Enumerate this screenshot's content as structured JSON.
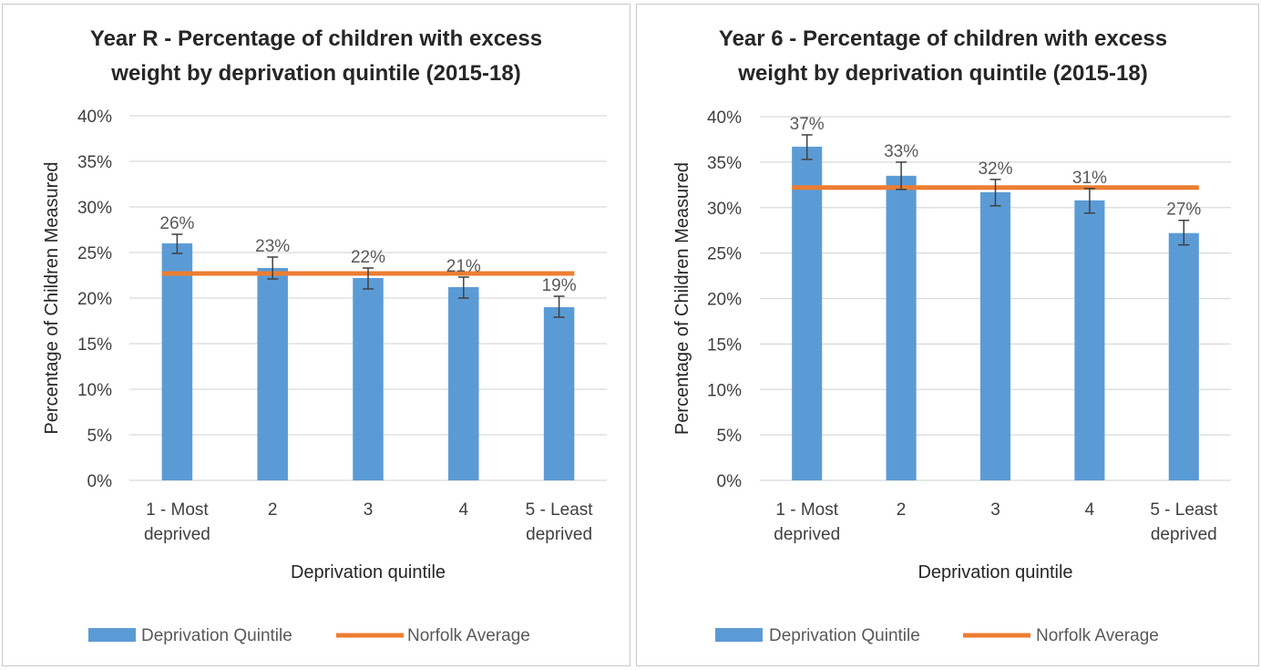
{
  "colors": {
    "bar": "#5B9BD5",
    "average_line": "#ED7D31",
    "gridline": "#D9D9D9",
    "error_bar": "#404040"
  },
  "chart_data": [
    {
      "type": "bar",
      "title_lines": [
        "Year R - Percentage of children with excess",
        "weight by deprivation quintile (2015-18)"
      ],
      "xlabel": "Deprivation quintile",
      "ylabel": "Percentage of Children Measured",
      "categories": [
        [
          "1 - Most",
          "deprived"
        ],
        [
          "2"
        ],
        [
          "3"
        ],
        [
          "4"
        ],
        [
          "5 - Least",
          "deprived"
        ]
      ],
      "yticks": [
        "0%",
        "5%",
        "10%",
        "15%",
        "20%",
        "25%",
        "30%",
        "35%",
        "40%"
      ],
      "ylim": [
        0,
        40
      ],
      "grid": true,
      "legend_position": "bottom",
      "series": [
        {
          "name": "Deprivation Quintile",
          "kind": "bar",
          "values": [
            26.0,
            23.3,
            22.2,
            21.2,
            19.0
          ],
          "data_labels": [
            "26%",
            "23%",
            "22%",
            "21%",
            "19%"
          ],
          "error_low": [
            24.9,
            22.1,
            21.0,
            20.0,
            17.9
          ],
          "error_high": [
            27.0,
            24.5,
            23.3,
            22.3,
            20.2
          ]
        },
        {
          "name": "Norfolk Average",
          "kind": "line",
          "value": 22.7
        }
      ]
    },
    {
      "type": "bar",
      "title_lines": [
        "Year 6 - Percentage of children with excess",
        "weight by deprivation quintile (2015-18)"
      ],
      "xlabel": "Deprivation quintile",
      "ylabel": "Percentage of Children Measured",
      "categories": [
        [
          "1 - Most",
          "deprived"
        ],
        [
          "2"
        ],
        [
          "3"
        ],
        [
          "4"
        ],
        [
          "5 - Least",
          "deprived"
        ]
      ],
      "yticks": [
        "0%",
        "5%",
        "10%",
        "15%",
        "20%",
        "25%",
        "30%",
        "35%",
        "40%"
      ],
      "ylim": [
        0,
        40
      ],
      "grid": true,
      "legend_position": "bottom",
      "series": [
        {
          "name": "Deprivation Quintile",
          "kind": "bar",
          "values": [
            36.7,
            33.5,
            31.7,
            30.8,
            27.2
          ],
          "data_labels": [
            "37%",
            "33%",
            "32%",
            "31%",
            "27%"
          ],
          "error_low": [
            35.3,
            32.0,
            30.2,
            29.4,
            25.9
          ],
          "error_high": [
            38.0,
            35.0,
            33.1,
            32.1,
            28.6
          ]
        },
        {
          "name": "Norfolk Average",
          "kind": "line",
          "value": 32.2
        }
      ]
    }
  ]
}
